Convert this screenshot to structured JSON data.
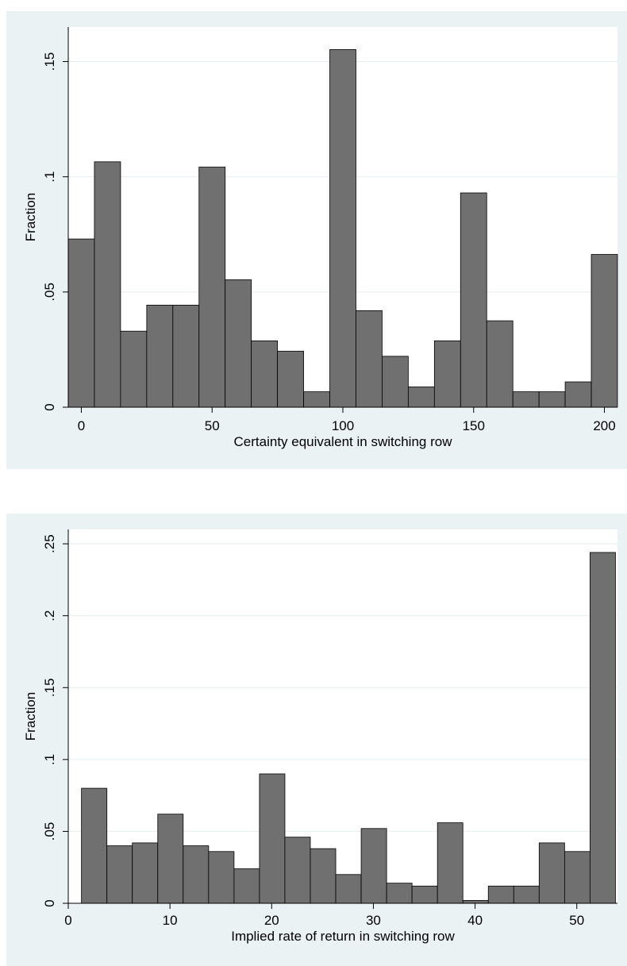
{
  "chart_data": [
    {
      "type": "bar",
      "ylabel": "Fraction",
      "xlabel": "Certainty equivalent in switching row",
      "xlim": [
        -5,
        205
      ],
      "ylim": [
        0,
        0.165
      ],
      "xticks": [
        0,
        50,
        100,
        150,
        200
      ],
      "xtick_labels": [
        "0",
        "50",
        "100",
        "150",
        "200"
      ],
      "yticks": [
        0,
        0.05,
        0.1,
        0.15
      ],
      "ytick_labels": [
        "0",
        ".05",
        ".1",
        ".15"
      ],
      "grid": true,
      "bin_start": -5,
      "bin_width": 10,
      "values": [
        0.073,
        0.1065,
        0.033,
        0.0443,
        0.0443,
        0.1042,
        0.0553,
        0.0288,
        0.0243,
        0.0067,
        0.1552,
        0.0419,
        0.0221,
        0.0088,
        0.0288,
        0.093,
        0.0375,
        0.0067,
        0.0067,
        0.011,
        0.0663
      ],
      "colors": {
        "bar": "#707070",
        "edge": "#000000",
        "background": "#eaf2f3",
        "plot": "#ffffff",
        "grid": "#e4eef0"
      }
    },
    {
      "type": "bar",
      "ylabel": "Fraction",
      "xlabel": "Implied rate of return in switching row",
      "xlim": [
        0,
        54
      ],
      "ylim": [
        0,
        0.26
      ],
      "xticks": [
        0,
        10,
        20,
        30,
        40,
        50
      ],
      "xtick_labels": [
        "0",
        "10",
        "20",
        "30",
        "40",
        "50"
      ],
      "yticks": [
        0,
        0.05,
        0.1,
        0.15,
        0.2,
        0.25
      ],
      "ytick_labels": [
        "0",
        ".05",
        ".1",
        ".15",
        ".2",
        ".25"
      ],
      "grid": true,
      "bin_start": 1.3,
      "bin_width": 2.5,
      "values": [
        0.08,
        0.04,
        0.042,
        0.062,
        0.04,
        0.036,
        0.024,
        0.09,
        0.046,
        0.038,
        0.02,
        0.052,
        0.014,
        0.012,
        0.056,
        0.002,
        0.012,
        0.012,
        0.042,
        0.036,
        0.244
      ],
      "colors": {
        "bar": "#707070",
        "edge": "#000000",
        "background": "#eaf2f3",
        "plot": "#ffffff",
        "grid": "#e4eef0"
      }
    }
  ]
}
